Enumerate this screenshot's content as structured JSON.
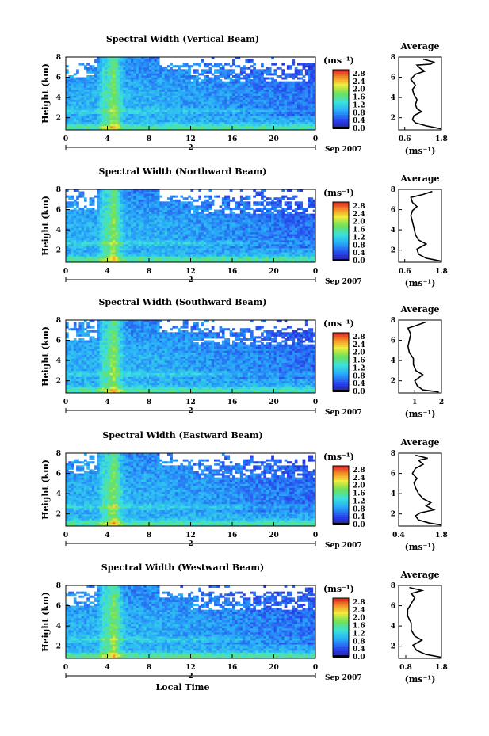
{
  "chart_data": [
    {
      "type": "heatmap",
      "title": "Spectral Width (Vertical Beam)",
      "ylabel": "Height (km)",
      "xlabel": "",
      "date_label": "2",
      "date_label_right": "Sep 2007",
      "x_ticks": [
        "0",
        "4",
        "8",
        "12",
        "16",
        "20",
        "0"
      ],
      "y_ticks": [
        "2",
        "4",
        "6",
        "8"
      ],
      "xlim": [
        0,
        24
      ],
      "ylim": [
        0.8,
        8.0
      ],
      "colorbar": {
        "unit": "(ms⁻¹)",
        "ticks": [
          "0.0",
          "0.4",
          "0.8",
          "1.2",
          "1.6",
          "2.0",
          "2.4",
          "2.8"
        ],
        "range": [
          0.0,
          3.0
        ]
      },
      "average_profile": {
        "title": "Average",
        "xlabel": "(ms⁻¹)",
        "x_ticks": [
          "0.6",
          "1.8"
        ],
        "y_ticks": [
          "2",
          "4",
          "6",
          "8"
        ],
        "xlim": [
          0.4,
          1.8
        ],
        "ylim": [
          0.8,
          8.0
        ],
        "profile": [
          [
            1.8,
            0.9
          ],
          [
            1.3,
            1.2
          ],
          [
            0.95,
            1.5
          ],
          [
            0.85,
            1.8
          ],
          [
            0.9,
            2.2
          ],
          [
            1.15,
            2.6
          ],
          [
            1.0,
            2.9
          ],
          [
            0.95,
            3.3
          ],
          [
            1.0,
            3.8
          ],
          [
            0.9,
            4.3
          ],
          [
            0.85,
            4.8
          ],
          [
            0.95,
            5.2
          ],
          [
            0.8,
            5.8
          ],
          [
            0.95,
            6.3
          ],
          [
            1.25,
            6.6
          ],
          [
            1.1,
            6.9
          ],
          [
            1.0,
            7.2
          ],
          [
            1.45,
            7.3
          ],
          [
            1.55,
            7.5
          ],
          [
            1.2,
            7.8
          ]
        ]
      }
    },
    {
      "type": "heatmap",
      "title": "Spectral Width (Northward Beam)",
      "ylabel": "Height (km)",
      "xlabel": "",
      "date_label": "2",
      "date_label_right": "Sep 2007",
      "x_ticks": [
        "0",
        "4",
        "8",
        "12",
        "16",
        "20",
        "0"
      ],
      "y_ticks": [
        "2",
        "4",
        "6",
        "8"
      ],
      "xlim": [
        0,
        24
      ],
      "ylim": [
        0.8,
        8.0
      ],
      "colorbar": {
        "unit": "(ms⁻¹)",
        "ticks": [
          "0.0",
          "0.4",
          "0.8",
          "1.2",
          "1.6",
          "2.0",
          "2.4",
          "2.8"
        ],
        "range": [
          0.0,
          3.0
        ]
      },
      "average_profile": {
        "title": "Average",
        "xlabel": "(ms⁻¹)",
        "x_ticks": [
          "0.6",
          "1.8"
        ],
        "y_ticks": [
          "2",
          "4",
          "6",
          "8"
        ],
        "xlim": [
          0.4,
          1.8
        ],
        "ylim": [
          0.8,
          8.0
        ],
        "profile": [
          [
            1.8,
            0.9
          ],
          [
            1.3,
            1.2
          ],
          [
            1.05,
            1.6
          ],
          [
            1.0,
            2.1
          ],
          [
            1.3,
            2.6
          ],
          [
            1.05,
            3.0
          ],
          [
            0.95,
            3.5
          ],
          [
            0.9,
            4.2
          ],
          [
            0.85,
            4.8
          ],
          [
            0.8,
            5.4
          ],
          [
            0.85,
            5.9
          ],
          [
            1.0,
            6.3
          ],
          [
            0.85,
            6.7
          ],
          [
            0.8,
            7.2
          ],
          [
            1.2,
            7.5
          ],
          [
            1.5,
            7.8
          ]
        ]
      }
    },
    {
      "type": "heatmap",
      "title": "Spectral Width (Southward Beam)",
      "ylabel": "Height (km)",
      "xlabel": "",
      "date_label": "2",
      "date_label_right": "Sep 2007",
      "x_ticks": [
        "0",
        "4",
        "8",
        "12",
        "16",
        "20",
        "0"
      ],
      "y_ticks": [
        "2",
        "4",
        "6",
        "8"
      ],
      "xlim": [
        0,
        24
      ],
      "ylim": [
        0.8,
        8.0
      ],
      "colorbar": {
        "unit": "(ms⁻¹)",
        "ticks": [
          "0.0",
          "0.4",
          "0.8",
          "1.2",
          "1.6",
          "2.0",
          "2.4",
          "2.8"
        ],
        "range": [
          0.0,
          3.0
        ]
      },
      "average_profile": {
        "title": "Average",
        "xlabel": "(ms⁻¹)",
        "x_ticks": [
          "1",
          "2"
        ],
        "y_ticks": [
          "2",
          "4",
          "6",
          "8"
        ],
        "xlim": [
          0.4,
          2.0
        ],
        "ylim": [
          0.8,
          8.0
        ],
        "profile": [
          [
            1.9,
            0.9
          ],
          [
            1.3,
            1.1
          ],
          [
            1.1,
            1.5
          ],
          [
            1.0,
            2.0
          ],
          [
            1.3,
            2.6
          ],
          [
            1.05,
            3.0
          ],
          [
            0.95,
            3.6
          ],
          [
            0.95,
            4.2
          ],
          [
            0.8,
            4.8
          ],
          [
            0.75,
            5.4
          ],
          [
            0.8,
            6.0
          ],
          [
            0.85,
            6.6
          ],
          [
            0.75,
            7.2
          ],
          [
            1.1,
            7.5
          ],
          [
            1.4,
            7.8
          ]
        ]
      }
    },
    {
      "type": "heatmap",
      "title": "Spectral Width (Eastward Beam)",
      "ylabel": "Height (km)",
      "xlabel": "",
      "date_label": "2",
      "date_label_right": "Sep 2007",
      "x_ticks": [
        "0",
        "4",
        "8",
        "12",
        "16",
        "20",
        "0"
      ],
      "y_ticks": [
        "2",
        "4",
        "6",
        "8"
      ],
      "xlim": [
        0,
        24
      ],
      "ylim": [
        0.8,
        8.0
      ],
      "colorbar": {
        "unit": "(ms⁻¹)",
        "ticks": [
          "0.0",
          "0.4",
          "0.8",
          "1.2",
          "1.6",
          "2.0",
          "2.4",
          "2.8"
        ],
        "range": [
          0.0,
          3.0
        ]
      },
      "average_profile": {
        "title": "Average",
        "xlabel": "(ms⁻¹)",
        "x_ticks": [
          "0.4",
          "1.8"
        ],
        "y_ticks": [
          "2",
          "4",
          "6",
          "8"
        ],
        "xlim": [
          0.4,
          1.8
        ],
        "ylim": [
          0.8,
          8.0
        ],
        "profile": [
          [
            1.8,
            0.9
          ],
          [
            1.4,
            1.1
          ],
          [
            1.05,
            1.4
          ],
          [
            0.95,
            1.8
          ],
          [
            1.1,
            2.1
          ],
          [
            1.55,
            2.4
          ],
          [
            1.3,
            2.8
          ],
          [
            1.45,
            3.1
          ],
          [
            1.2,
            3.5
          ],
          [
            1.05,
            4.0
          ],
          [
            0.95,
            4.6
          ],
          [
            0.9,
            5.1
          ],
          [
            1.0,
            5.5
          ],
          [
            0.85,
            6.0
          ],
          [
            0.95,
            6.5
          ],
          [
            1.2,
            6.9
          ],
          [
            1.05,
            7.3
          ],
          [
            1.35,
            7.5
          ],
          [
            0.95,
            7.8
          ]
        ]
      }
    },
    {
      "type": "heatmap",
      "title": "Spectral Width (Westward Beam)",
      "ylabel": "Height (km)",
      "xlabel": "Local Time",
      "date_label": "2",
      "date_label_right": "Sep 2007",
      "x_ticks": [
        "0",
        "4",
        "8",
        "12",
        "16",
        "20",
        "0"
      ],
      "y_ticks": [
        "2",
        "4",
        "6",
        "8"
      ],
      "xlim": [
        0,
        24
      ],
      "ylim": [
        0.8,
        8.0
      ],
      "colorbar": {
        "unit": "(ms⁻¹)",
        "ticks": [
          "0.0",
          "0.4",
          "0.8",
          "1.2",
          "1.6",
          "2.0",
          "2.4",
          "2.8"
        ],
        "range": [
          0.0,
          3.0
        ]
      },
      "average_profile": {
        "title": "Average",
        "xlabel": "(ms⁻¹)",
        "x_ticks": [
          "0.8",
          "1.8"
        ],
        "y_ticks": [
          "2",
          "4",
          "6",
          "8"
        ],
        "xlim": [
          0.6,
          1.8
        ],
        "ylim": [
          0.8,
          8.0
        ],
        "profile": [
          [
            1.8,
            0.9
          ],
          [
            1.35,
            1.2
          ],
          [
            1.1,
            1.6
          ],
          [
            1.0,
            2.1
          ],
          [
            1.25,
            2.6
          ],
          [
            1.05,
            3.0
          ],
          [
            0.95,
            3.6
          ],
          [
            0.95,
            4.3
          ],
          [
            0.85,
            5.0
          ],
          [
            0.85,
            5.6
          ],
          [
            0.95,
            6.2
          ],
          [
            1.05,
            6.8
          ],
          [
            0.95,
            7.2
          ],
          [
            1.25,
            7.5
          ],
          [
            0.9,
            7.8
          ]
        ]
      }
    }
  ]
}
